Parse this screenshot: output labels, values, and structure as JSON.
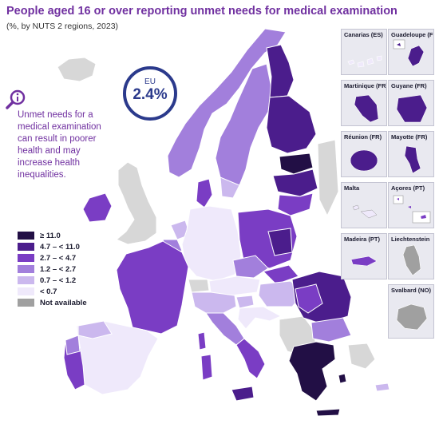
{
  "title": "People aged 16 or over reporting unmet needs for medical examination",
  "subtitle": "(%, by NUTS 2 regions, 2023)",
  "eu_badge": {
    "label": "EU",
    "value": "2.4%"
  },
  "note": "Unmet needs for a medical examination can result in poorer health and may increase health inequalities.",
  "legend": [
    {
      "label": "≥ 11.0",
      "color": "#220f45"
    },
    {
      "label": "4.7 – < 11.0",
      "color": "#4b1d8c"
    },
    {
      "label": "2.7 – < 4.7",
      "color": "#7a3dc4"
    },
    {
      "label": "1.2 – < 2.7",
      "color": "#a27fdc"
    },
    {
      "label": "0.7 – < 1.2",
      "color": "#cbb8ee"
    },
    {
      "label": "< 0.7",
      "color": "#efe9fb"
    },
    {
      "label": "Not available",
      "color": "#a0a0a0"
    }
  ],
  "insets": [
    {
      "label": "Canarias (ES)"
    },
    {
      "label": "Guadeloupe (FR)"
    },
    {
      "label": "Martinique (FR)"
    },
    {
      "label": "Guyane (FR)"
    },
    {
      "label": "Réunion (FR)"
    },
    {
      "label": "Mayotte (FR)"
    },
    {
      "label": "Malta"
    },
    {
      "label": "Açores (PT)"
    },
    {
      "label": "Madeira (PT)"
    },
    {
      "label": "Liechtenstein"
    },
    {
      "label": "Svalbard (NO)"
    }
  ],
  "colors": {
    "title": "#7030a0",
    "badge": "#2b3a8c",
    "sea": "#ffffff",
    "non_eu_land": "#d7d7d7",
    "border": "#ffffff"
  }
}
